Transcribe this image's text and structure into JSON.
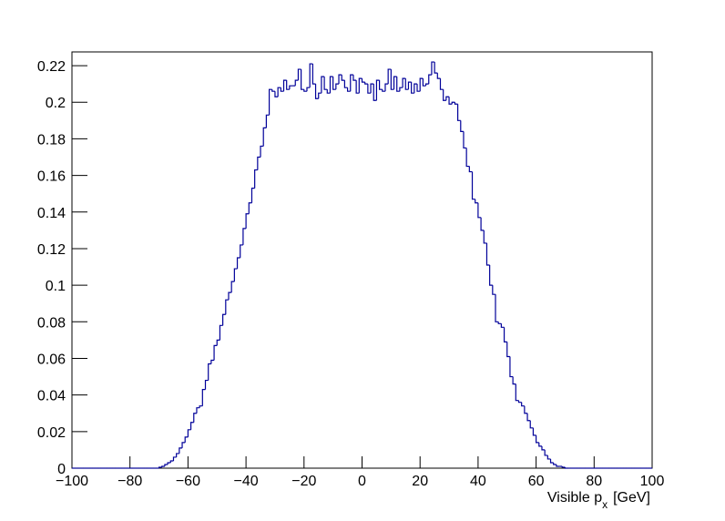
{
  "chart_data": {
    "type": "histogram",
    "x_label": {
      "text": "Visible p",
      "subscript": "x",
      "unit": "[GeV]"
    },
    "color": "#000099",
    "xlim": [
      -100,
      100
    ],
    "ylim": [
      0,
      0.2275
    ],
    "xticks": [
      {
        "value": -100,
        "label": "−100"
      },
      {
        "value": -80,
        "label": "−80"
      },
      {
        "value": -60,
        "label": "−60"
      },
      {
        "value": -40,
        "label": "−40"
      },
      {
        "value": -20,
        "label": "−20"
      },
      0,
      20,
      40,
      60,
      80,
      100
    ],
    "yticks": [
      0,
      0.02,
      0.04,
      0.06,
      0.08,
      0.1,
      0.12,
      0.14,
      0.16,
      0.18,
      0.2,
      0.22
    ],
    "bins": [
      -100,
      -99,
      -98,
      -97,
      -96,
      -95,
      -94,
      -93,
      -92,
      -91,
      -90,
      -89,
      -88,
      -87,
      -86,
      -85,
      -84,
      -83,
      -82,
      -81,
      -80,
      -79,
      -78,
      -77,
      -76,
      -75,
      -74,
      -73,
      -72,
      -71,
      -70,
      -69,
      -68,
      -67,
      -66,
      -65,
      -64,
      -63,
      -62,
      -61,
      -60,
      -59,
      -58,
      -57,
      -56,
      -55,
      -54,
      -53,
      -52,
      -51,
      -50,
      -49,
      -48,
      -47,
      -46,
      -45,
      -44,
      -43,
      -42,
      -41,
      -40,
      -39,
      -38,
      -37,
      -36,
      -35,
      -34,
      -33,
      -32,
      -31,
      -30,
      -29,
      -28,
      -27,
      -26,
      -25,
      -24,
      -23,
      -22,
      -21,
      -20,
      -19,
      -18,
      -17,
      -16,
      -15,
      -14,
      -13,
      -12,
      -11,
      -10,
      -9,
      -8,
      -7,
      -6,
      -5,
      -4,
      -3,
      -2,
      -1,
      0,
      1,
      2,
      3,
      4,
      5,
      6,
      7,
      8,
      9,
      10,
      11,
      12,
      13,
      14,
      15,
      16,
      17,
      18,
      19,
      20,
      21,
      22,
      23,
      24,
      25,
      26,
      27,
      28,
      29,
      30,
      31,
      32,
      33,
      34,
      35,
      36,
      37,
      38,
      39,
      40,
      41,
      42,
      43,
      44,
      45,
      46,
      47,
      48,
      49,
      50,
      51,
      52,
      53,
      54,
      55,
      56,
      57,
      58,
      59,
      60,
      61,
      62,
      63,
      64,
      65,
      66,
      67,
      68,
      69,
      70,
      71,
      72,
      73,
      74,
      75,
      76,
      77,
      78,
      79,
      80,
      81,
      82,
      83,
      84,
      85,
      86,
      87,
      88,
      89,
      90,
      91,
      92,
      93,
      94,
      95,
      96,
      97,
      98,
      99,
      100
    ],
    "values": [
      0,
      0,
      0,
      0,
      0,
      0,
      0,
      0,
      0,
      0,
      0,
      0,
      0,
      0,
      0,
      0,
      0,
      0,
      0,
      0,
      0,
      0,
      0,
      0,
      0,
      0,
      0,
      0,
      0,
      0,
      0.0005,
      0.001,
      0.002,
      0.003,
      0.004,
      0.006,
      0.008,
      0.011,
      0.014,
      0.017,
      0.021,
      0.025,
      0.03,
      0.033,
      0.034,
      0.043,
      0.048,
      0.057,
      0.059,
      0.067,
      0.07,
      0.078,
      0.084,
      0.092,
      0.096,
      0.102,
      0.109,
      0.115,
      0.122,
      0.131,
      0.139,
      0.145,
      0.153,
      0.163,
      0.17,
      0.176,
      0.186,
      0.193,
      0.207,
      0.206,
      0.203,
      0.208,
      0.206,
      0.212,
      0.207,
      0.209,
      0.209,
      0.212,
      0.218,
      0.207,
      0.206,
      0.208,
      0.221,
      0.21,
      0.202,
      0.205,
      0.214,
      0.207,
      0.205,
      0.214,
      0.207,
      0.21,
      0.215,
      0.212,
      0.208,
      0.206,
      0.215,
      0.212,
      0.205,
      0.213,
      0.211,
      0.21,
      0.205,
      0.21,
      0.201,
      0.212,
      0.207,
      0.206,
      0.21,
      0.218,
      0.207,
      0.214,
      0.206,
      0.208,
      0.213,
      0.207,
      0.211,
      0.205,
      0.21,
      0.206,
      0.213,
      0.209,
      0.21,
      0.215,
      0.222,
      0.216,
      0.213,
      0.207,
      0.201,
      0.203,
      0.199,
      0.2,
      0.199,
      0.19,
      0.184,
      0.175,
      0.165,
      0.162,
      0.147,
      0.145,
      0.137,
      0.13,
      0.123,
      0.111,
      0.1,
      0.095,
      0.08,
      0.079,
      0.077,
      0.069,
      0.061,
      0.05,
      0.046,
      0.037,
      0.036,
      0.034,
      0.03,
      0.026,
      0.022,
      0.018,
      0.014,
      0.012,
      0.01,
      0.007,
      0.005,
      0.003,
      0.002,
      0.001,
      0.001,
      0.0005,
      0,
      0,
      0,
      0,
      0,
      0,
      0,
      0,
      0,
      0,
      0,
      0,
      0,
      0,
      0,
      0,
      0,
      0,
      0,
      0,
      0,
      0,
      0,
      0,
      0,
      0,
      0,
      0,
      0,
      0
    ]
  }
}
